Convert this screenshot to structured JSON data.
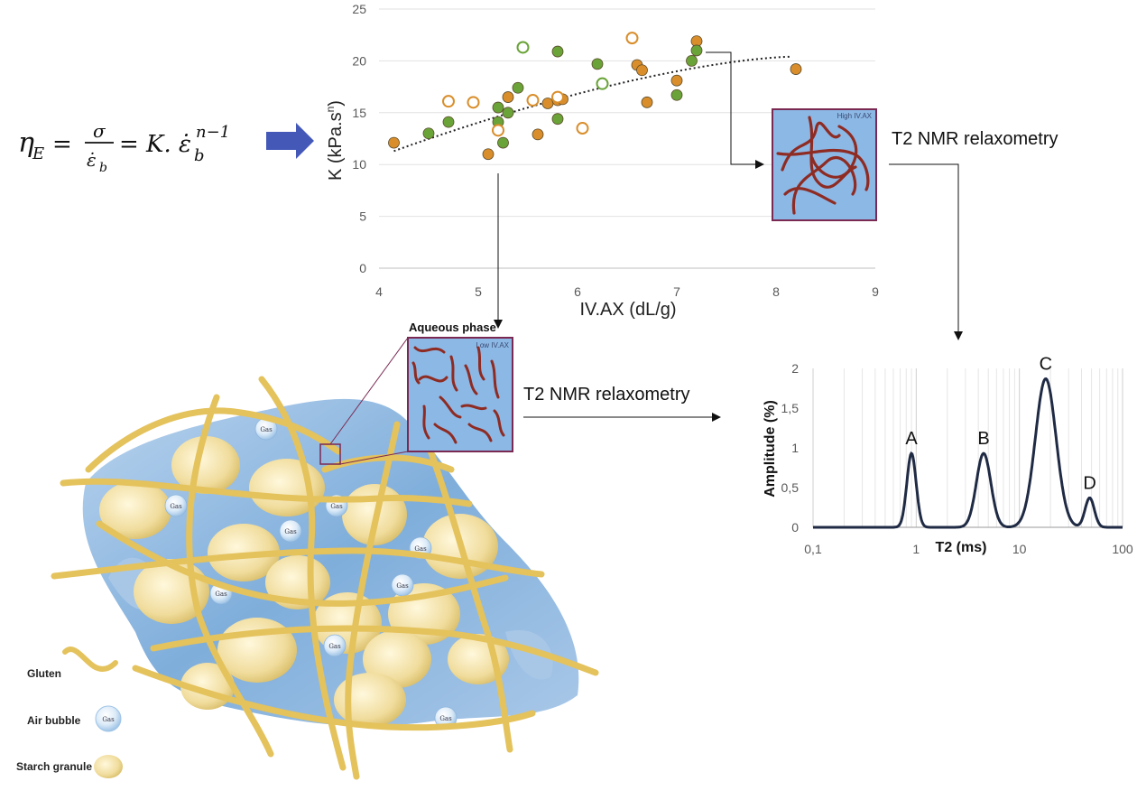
{
  "equation": {
    "lhs": "η",
    "lhs_sub": "E",
    "numerator": "σ",
    "denominator": "ε̇",
    "denominator_sub": "b",
    "rhs": "= K. ε̇",
    "rhs_sub": "b",
    "rhs_sup": "n−1",
    "equals": "="
  },
  "labels": {
    "t2_top": "T2 NMR relaxometry",
    "t2_mid": "T2 NMR relaxometry",
    "aqueous_phase": "Aqueous phase",
    "low_ivax": "Low IV.AX",
    "high_ivax": "High IV.AX",
    "gas": "Gas"
  },
  "legend": {
    "gluten": "Gluten",
    "air_bubble": "Air bubble",
    "starch": "Starch granule"
  },
  "colors": {
    "orange": "#D98E2B",
    "green": "#6AA338",
    "arrow_blue": "#4458B8",
    "inset_fill": "#8CB8E6",
    "inset_border": "#7A2952",
    "chain": "#8E2B22",
    "curve": "#1F2A44",
    "gluten": "#E4C25C",
    "starch": "#F2DFA2",
    "matrix": "#8FB8DE"
  },
  "chart_data": [
    {
      "type": "scatter",
      "xlabel": "IV.AX (dL/g)",
      "ylabel": "K (kPa.s",
      "ylabel_sup": "n",
      "ylabel_end": ")",
      "xlim": [
        4,
        9
      ],
      "ylim": [
        0,
        25
      ],
      "xticks": [
        4,
        5,
        6,
        7,
        8,
        9
      ],
      "yticks": [
        0,
        5,
        10,
        15,
        20,
        25
      ],
      "grid": "horizontal",
      "trendline": {
        "style": "dotted",
        "x": [
          4.15,
          8.15
        ],
        "y": [
          11.3,
          20.4
        ]
      },
      "series": [
        {
          "marker": "filled",
          "color": "orange",
          "points": [
            [
              4.15,
              12.1
            ],
            [
              5.1,
              11
            ],
            [
              5.3,
              16.5
            ],
            [
              5.6,
              12.9
            ],
            [
              5.7,
              15.9
            ],
            [
              5.8,
              16.2
            ],
            [
              5.85,
              16.3
            ],
            [
              6.6,
              19.6
            ],
            [
              6.65,
              19.1
            ],
            [
              6.7,
              16
            ],
            [
              7.0,
              18.1
            ],
            [
              7.2,
              21.9
            ],
            [
              8.2,
              19.2
            ]
          ]
        },
        {
          "marker": "filled",
          "color": "green",
          "points": [
            [
              4.5,
              13
            ],
            [
              4.7,
              14.1
            ],
            [
              5.2,
              15.5
            ],
            [
              5.2,
              14.1
            ],
            [
              5.25,
              12.1
            ],
            [
              5.3,
              15
            ],
            [
              5.4,
              17.4
            ],
            [
              5.8,
              20.9
            ],
            [
              5.8,
              14.4
            ],
            [
              6.2,
              19.7
            ],
            [
              7.0,
              16.7
            ],
            [
              7.15,
              20
            ],
            [
              7.2,
              21
            ]
          ]
        },
        {
          "marker": "open",
          "color": "orange",
          "points": [
            [
              4.7,
              16.1
            ],
            [
              4.95,
              16
            ],
            [
              5.2,
              13.3
            ],
            [
              5.55,
              16.2
            ],
            [
              5.8,
              16.5
            ],
            [
              6.05,
              13.5
            ],
            [
              6.55,
              22.2
            ]
          ]
        },
        {
          "marker": "open",
          "color": "green",
          "points": [
            [
              5.45,
              21.3
            ],
            [
              6.25,
              17.8
            ]
          ]
        }
      ]
    },
    {
      "type": "line",
      "xlabel": "T2 (ms)",
      "ylabel": "Amplitude (%)",
      "xscale": "log",
      "xlim": [
        0.1,
        100
      ],
      "ylim": [
        0,
        2
      ],
      "xticks": [
        0.1,
        1,
        10,
        100
      ],
      "xtick_labels": [
        "0,1",
        "1",
        "10",
        "100"
      ],
      "yticks": [
        0,
        0.5,
        1,
        1.5,
        2
      ],
      "ytick_labels": [
        "0",
        "0,5",
        "1",
        "1,5",
        "2"
      ],
      "grid": "vertical-minor",
      "peaks": [
        {
          "label": "A",
          "t2": 0.9,
          "amplitude": 0.93
        },
        {
          "label": "B",
          "t2": 4.5,
          "amplitude": 0.93
        },
        {
          "label": "C",
          "t2": 18,
          "amplitude": 1.87
        },
        {
          "label": "D",
          "t2": 48,
          "amplitude": 0.37
        }
      ]
    }
  ]
}
